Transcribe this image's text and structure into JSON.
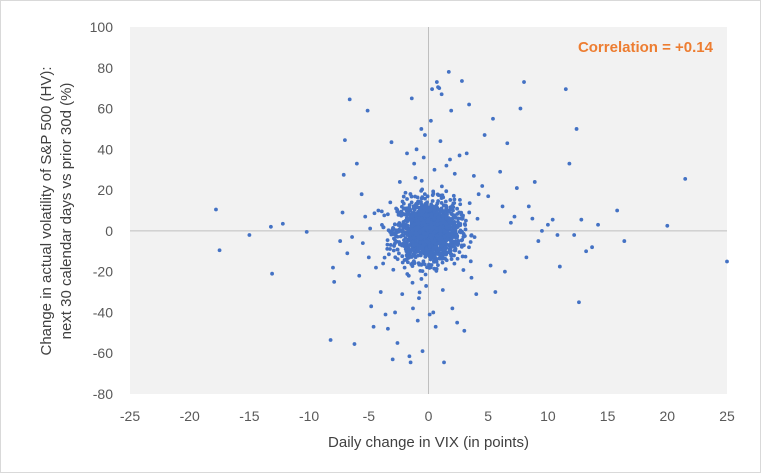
{
  "chart_data": {
    "type": "scatter",
    "title": "",
    "xlabel": "Daily change in VIX (in points)",
    "ylabel_line1": "Change in actual volatility of S&P 500 (HV):",
    "ylabel_line2": "next 30 calendar days vs prior 30d (%)",
    "xlim": [
      -25,
      25
    ],
    "ylim": [
      -80,
      100
    ],
    "x_ticks": [
      -25,
      -20,
      -15,
      -10,
      -5,
      0,
      5,
      10,
      15,
      20,
      25
    ],
    "y_ticks": [
      -80,
      -60,
      -40,
      -20,
      0,
      20,
      40,
      60,
      80,
      100
    ],
    "grid": false,
    "legend": "none",
    "annotation": "Correlation = +0.14",
    "colors": {
      "points": "#4472c4",
      "annotation": "#ed7d31",
      "axis": "#bfbfbf",
      "plot_area": "#f2f2f2"
    },
    "core_cluster": {
      "count": 1500,
      "x_center": 0,
      "y_center": 0,
      "x_spread": 1.3,
      "y_spread": 7.5
    },
    "points": [
      [
        -17.8,
        10.5
      ],
      [
        -17.5,
        -9.5
      ],
      [
        -15,
        -2
      ],
      [
        -13.2,
        2
      ],
      [
        -13.1,
        -21
      ],
      [
        -12.2,
        3.5
      ],
      [
        -10.2,
        -0.5
      ],
      [
        -8.2,
        -53.5
      ],
      [
        -8,
        -18
      ],
      [
        -7.9,
        -25
      ],
      [
        -7.4,
        -5
      ],
      [
        -7.2,
        9
      ],
      [
        -7.1,
        27.5
      ],
      [
        -7,
        44.5
      ],
      [
        -6.8,
        -11
      ],
      [
        -6.6,
        64.5
      ],
      [
        -6.4,
        -3
      ],
      [
        -6.2,
        -55.5
      ],
      [
        -6,
        33
      ],
      [
        -5.8,
        -22
      ],
      [
        -5.6,
        18
      ],
      [
        -5.5,
        -6
      ],
      [
        -5.3,
        7
      ],
      [
        -5.1,
        59
      ],
      [
        -5,
        -13
      ],
      [
        -4.8,
        -37
      ],
      [
        -4.6,
        -47
      ],
      [
        -4.4,
        -18
      ],
      [
        -4.2,
        10
      ],
      [
        -4,
        -30
      ],
      [
        -3.8,
        -16
      ],
      [
        -3.6,
        -41
      ],
      [
        -3.4,
        -48
      ],
      [
        -3.2,
        14
      ],
      [
        -3.1,
        43.5
      ],
      [
        -3,
        -63
      ],
      [
        -2.8,
        -40
      ],
      [
        -2.6,
        -55
      ],
      [
        -2.4,
        24
      ],
      [
        -2.2,
        -31
      ],
      [
        -2,
        -18
      ],
      [
        -1.8,
        38
      ],
      [
        -1.6,
        -61.5
      ],
      [
        -1.5,
        -64.5
      ],
      [
        -1.4,
        65
      ],
      [
        -1.3,
        -38
      ],
      [
        -1.2,
        33
      ],
      [
        -1.1,
        26
      ],
      [
        -1,
        40
      ],
      [
        -0.9,
        -44
      ],
      [
        -0.8,
        -33
      ],
      [
        -0.6,
        50
      ],
      [
        -0.5,
        -59
      ],
      [
        -0.4,
        36
      ],
      [
        -0.3,
        47
      ],
      [
        -0.2,
        -27
      ],
      [
        0.1,
        -41
      ],
      [
        0.2,
        54
      ],
      [
        0.3,
        69.5
      ],
      [
        0.4,
        -40
      ],
      [
        0.5,
        30
      ],
      [
        0.6,
        -47
      ],
      [
        0.7,
        73
      ],
      [
        0.8,
        70.5
      ],
      [
        0.9,
        70
      ],
      [
        1,
        44
      ],
      [
        1.1,
        67
      ],
      [
        1.2,
        -29
      ],
      [
        1.3,
        -64.5
      ],
      [
        1.5,
        32
      ],
      [
        1.7,
        78
      ],
      [
        1.8,
        35
      ],
      [
        1.9,
        59
      ],
      [
        2,
        -38
      ],
      [
        2.2,
        28
      ],
      [
        2.4,
        -45
      ],
      [
        2.6,
        37
      ],
      [
        2.8,
        73.5
      ],
      [
        3,
        -49
      ],
      [
        3.2,
        38
      ],
      [
        3.4,
        62
      ],
      [
        3.6,
        -23
      ],
      [
        3.8,
        27
      ],
      [
        4,
        -31
      ],
      [
        4.2,
        18
      ],
      [
        4.5,
        22
      ],
      [
        4.7,
        47
      ],
      [
        5,
        17
      ],
      [
        5.2,
        -17
      ],
      [
        5.4,
        55
      ],
      [
        5.6,
        -30
      ],
      [
        6,
        29
      ],
      [
        6.2,
        12
      ],
      [
        6.4,
        -20
      ],
      [
        6.6,
        43
      ],
      [
        6.9,
        4
      ],
      [
        7.2,
        7
      ],
      [
        7.4,
        21
      ],
      [
        7.7,
        60
      ],
      [
        8,
        73
      ],
      [
        8.2,
        -13
      ],
      [
        8.4,
        12
      ],
      [
        8.7,
        6
      ],
      [
        8.9,
        24
      ],
      [
        9.2,
        -5
      ],
      [
        9.5,
        0
      ],
      [
        10,
        3
      ],
      [
        10.4,
        5.5
      ],
      [
        10.8,
        -2
      ],
      [
        11,
        -17.5
      ],
      [
        11.5,
        69.5
      ],
      [
        11.8,
        33
      ],
      [
        12.2,
        -2
      ],
      [
        12.4,
        50
      ],
      [
        12.6,
        -35
      ],
      [
        12.8,
        5.5
      ],
      [
        13.2,
        -10
      ],
      [
        13.7,
        -8
      ],
      [
        14.2,
        3
      ],
      [
        15.8,
        10
      ],
      [
        16.4,
        -5
      ],
      [
        20,
        2.5
      ],
      [
        21.5,
        25.5
      ],
      [
        25,
        -15
      ]
    ]
  }
}
